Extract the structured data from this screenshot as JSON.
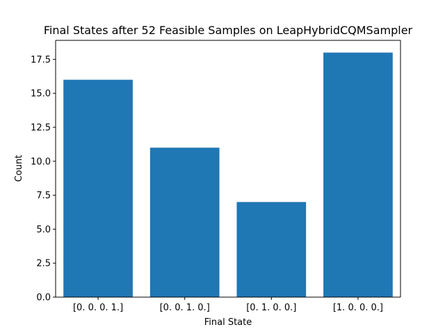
{
  "chart_data": {
    "type": "bar",
    "title": "Final States after 52 Feasible Samples on LeapHybridCQMSampler",
    "xlabel": "Final State",
    "ylabel": "Count",
    "categories": [
      "[0. 0. 0. 1.]",
      "[0. 0. 1. 0.]",
      "[0. 1. 0. 0.]",
      "[1. 0. 0. 0.]"
    ],
    "values": [
      16,
      11,
      7,
      18
    ],
    "ylim": [
      0,
      18.9
    ],
    "yticks": [
      0.0,
      2.5,
      5.0,
      7.5,
      10.0,
      12.5,
      15.0,
      17.5
    ],
    "ytick_labels": [
      "0.0",
      "2.5",
      "5.0",
      "7.5",
      "10.0",
      "12.5",
      "15.0",
      "17.5"
    ],
    "bar_color": "#1f77b4",
    "grid": false,
    "legend": "none"
  }
}
